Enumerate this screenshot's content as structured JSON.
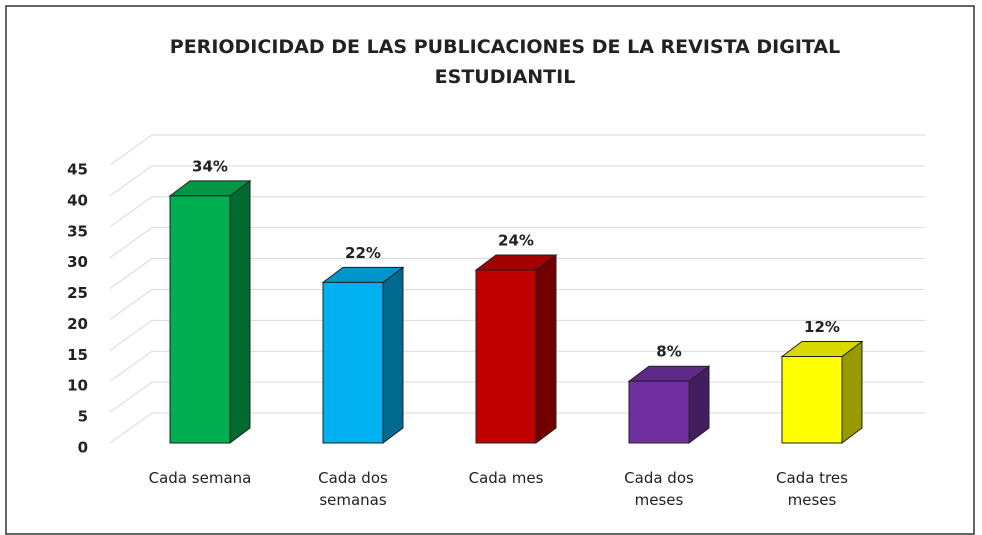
{
  "chart_data": {
    "type": "bar3d",
    "title": "PERIODICIDAD DE LAS PUBLICACIONES DE LA REVISTA DIGITAL ESTUDIANTIL",
    "categories": [
      "Cada semana",
      "Cada dos semanas",
      "Cada mes",
      "Cada dos meses",
      "Cada tres meses"
    ],
    "values": [
      40,
      26,
      28,
      10,
      14
    ],
    "annotations": [
      "34%",
      "22%",
      "24%",
      "8%",
      "12%"
    ],
    "colors": [
      "#00b050",
      "#00b0f0",
      "#c00000",
      "#7030a0",
      "#ffff00"
    ],
    "ylim": [
      0,
      45
    ],
    "yticks": [
      0,
      5,
      10,
      15,
      20,
      25,
      30,
      35,
      40,
      45
    ],
    "grid": true
  }
}
